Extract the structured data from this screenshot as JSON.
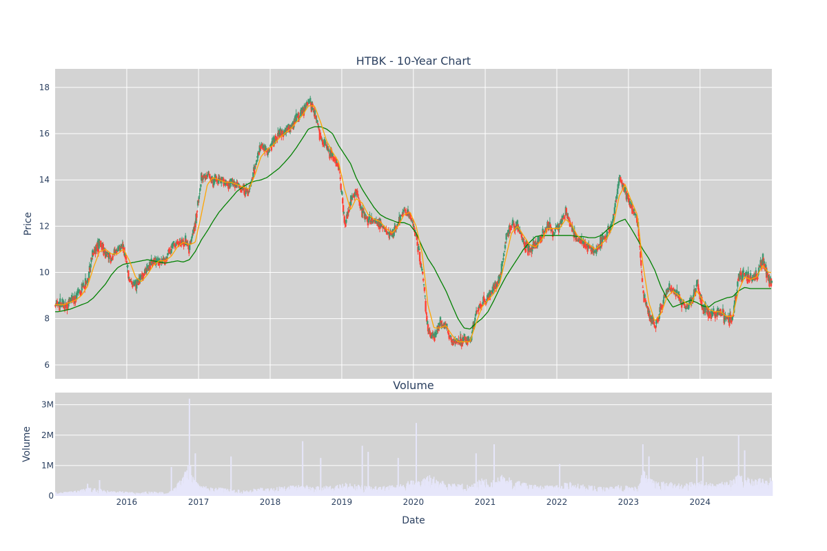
{
  "chart_data": [
    {
      "type": "candlestick",
      "title": "HTBK - 10-Year Chart",
      "ylabel": "Price",
      "ylim": [
        5.4,
        18.8
      ],
      "yticks": [
        6,
        8,
        10,
        12,
        14,
        16,
        18
      ],
      "grid": true,
      "legend": "none",
      "colors": {
        "up": "#3d9970",
        "down": "#ff4136",
        "ma_short": "#ffa500",
        "ma_long": "#008000",
        "background": "#d3d3d3"
      },
      "x_start": "2015-01",
      "x_end": "2024-12",
      "close_monthly": [
        8.6,
        8.5,
        8.8,
        8.9,
        9.3,
        9.7,
        11.0,
        11.3,
        10.8,
        10.6,
        11.0,
        11.2,
        9.6,
        9.4,
        9.8,
        10.2,
        10.6,
        10.4,
        10.6,
        11.0,
        11.4,
        11.3,
        11.1,
        12.2,
        14.1,
        14.2,
        14.0,
        14.0,
        13.8,
        13.9,
        13.8,
        13.6,
        13.5,
        14.7,
        15.5,
        15.2,
        15.6,
        16.0,
        16.0,
        16.3,
        16.6,
        17.0,
        17.4,
        16.8,
        15.8,
        15.4,
        15.0,
        14.6,
        12.1,
        13.1,
        13.6,
        12.6,
        12.3,
        12.2,
        12.1,
        11.8,
        11.6,
        12.2,
        12.8,
        12.4,
        11.6,
        9.9,
        7.4,
        7.2,
        7.8,
        7.7,
        7.0,
        7.0,
        7.1,
        7.0,
        8.3,
        8.7,
        8.9,
        9.3,
        9.7,
        11.4,
        12.1,
        12.0,
        11.3,
        11.0,
        11.2,
        11.6,
        12.1,
        11.7,
        12.0,
        12.6,
        12.0,
        11.4,
        11.3,
        11.1,
        10.9,
        11.4,
        11.7,
        12.4,
        14.0,
        13.5,
        12.8,
        12.3,
        9.1,
        8.2,
        7.7,
        8.5,
        9.3,
        9.3,
        8.9,
        8.5,
        8.6,
        9.6,
        8.4,
        8.3,
        8.2,
        8.3,
        8.0,
        8.1,
        9.9,
        9.8,
        9.7,
        9.8,
        10.6,
        9.6
      ],
      "ma_short_monthly": [
        8.6,
        8.6,
        8.7,
        8.8,
        9.0,
        9.4,
        10.2,
        10.9,
        11.0,
        10.8,
        10.8,
        11.0,
        10.5,
        9.8,
        9.6,
        9.9,
        10.3,
        10.5,
        10.5,
        10.7,
        11.1,
        11.3,
        11.2,
        11.3,
        12.5,
        13.8,
        14.1,
        14.0,
        13.9,
        13.9,
        13.8,
        13.7,
        13.6,
        14.2,
        15.0,
        15.3,
        15.5,
        15.8,
        16.0,
        16.2,
        16.5,
        16.8,
        17.2,
        17.2,
        16.5,
        15.7,
        15.2,
        14.8,
        13.6,
        12.7,
        13.2,
        13.0,
        12.5,
        12.3,
        12.2,
        11.9,
        11.7,
        12.0,
        12.5,
        12.6,
        12.0,
        10.8,
        8.6,
        7.6,
        7.6,
        7.7,
        7.3,
        7.0,
        7.0,
        7.0,
        7.8,
        8.5,
        8.8,
        9.1,
        9.5,
        10.6,
        11.7,
        12.0,
        11.6,
        11.2,
        11.1,
        11.4,
        11.9,
        11.9,
        11.9,
        12.3,
        12.1,
        11.6,
        11.4,
        11.2,
        11.0,
        11.2,
        11.5,
        12.0,
        13.3,
        13.8,
        13.1,
        12.5,
        10.4,
        8.7,
        7.9,
        8.2,
        8.9,
        9.2,
        9.0,
        8.7,
        8.6,
        9.2,
        8.8,
        8.4,
        8.3,
        8.3,
        8.1,
        8.1,
        9.2,
        9.8,
        9.7,
        9.8,
        10.3,
        10.0
      ],
      "ma_long_monthly": [
        8.3,
        8.35,
        8.4,
        8.5,
        8.6,
        8.7,
        8.9,
        9.2,
        9.5,
        9.9,
        10.2,
        10.35,
        10.4,
        10.45,
        10.5,
        10.55,
        10.5,
        10.45,
        10.4,
        10.45,
        10.5,
        10.45,
        10.55,
        10.9,
        11.4,
        11.8,
        12.2,
        12.6,
        12.9,
        13.2,
        13.5,
        13.7,
        13.85,
        13.95,
        14.0,
        14.1,
        14.3,
        14.5,
        14.75,
        15.05,
        15.4,
        15.8,
        16.2,
        16.3,
        16.3,
        16.2,
        16.0,
        15.5,
        15.1,
        14.7,
        14.1,
        13.6,
        13.2,
        12.8,
        12.5,
        12.35,
        12.25,
        12.15,
        12.15,
        12.05,
        11.7,
        11.1,
        10.6,
        10.2,
        9.7,
        9.2,
        8.6,
        8.0,
        7.6,
        7.55,
        7.8,
        8.0,
        8.3,
        8.8,
        9.3,
        9.8,
        10.2,
        10.6,
        11.0,
        11.3,
        11.55,
        11.6,
        11.6,
        11.6,
        11.6,
        11.6,
        11.6,
        11.55,
        11.55,
        11.5,
        11.5,
        11.6,
        11.85,
        12.05,
        12.2,
        12.3,
        11.9,
        11.45,
        11.0,
        10.6,
        10.1,
        9.4,
        8.9,
        8.5,
        8.6,
        8.7,
        8.8,
        8.7,
        8.55,
        8.5,
        8.7,
        8.8,
        8.9,
        8.95,
        9.2,
        9.35,
        9.3,
        9.3,
        9.3,
        9.3
      ]
    },
    {
      "type": "bar",
      "title": "Volume",
      "xlabel": "Date",
      "ylabel": "Volume",
      "ylim": [
        0,
        3400000
      ],
      "yticks": [
        0,
        1000000,
        2000000,
        3000000
      ],
      "ytick_labels": [
        "0",
        "1M",
        "2M",
        "3M"
      ],
      "grid": true,
      "colors": {
        "bar": "#e6e6fa",
        "background": "#d3d3d3"
      },
      "x_tick_labels": [
        "2016",
        "2017",
        "2018",
        "2019",
        "2020",
        "2021",
        "2022",
        "2023",
        "2024"
      ],
      "volume_monthly_typical": [
        100000,
        110000,
        130000,
        150000,
        180000,
        220000,
        230000,
        200000,
        160000,
        140000,
        130000,
        120000,
        110000,
        100000,
        100000,
        120000,
        130000,
        110000,
        100000,
        150000,
        350000,
        600000,
        900000,
        400000,
        300000,
        250000,
        200000,
        230000,
        200000,
        180000,
        170000,
        150000,
        160000,
        200000,
        230000,
        210000,
        220000,
        250000,
        270000,
        300000,
        320000,
        300000,
        280000,
        260000,
        250000,
        280000,
        260000,
        300000,
        350000,
        330000,
        300000,
        280000,
        270000,
        260000,
        250000,
        270000,
        290000,
        320000,
        380000,
        420000,
        380000,
        450000,
        600000,
        500000,
        420000,
        380000,
        350000,
        330000,
        320000,
        310000,
        400000,
        480000,
        450000,
        420000,
        600000,
        550000,
        480000,
        400000,
        350000,
        320000,
        300000,
        280000,
        300000,
        320000,
        330000,
        360000,
        380000,
        350000,
        300000,
        280000,
        260000,
        240000,
        230000,
        260000,
        300000,
        280000,
        250000,
        280000,
        700000,
        500000,
        450000,
        400000,
        380000,
        360000,
        340000,
        330000,
        380000,
        420000,
        400000,
        380000,
        350000,
        370000,
        400000,
        430000,
        600000,
        520000,
        480000,
        450000,
        500000,
        480000
      ],
      "volume_peaks": [
        {
          "date": "2015-06",
          "value": 400000
        },
        {
          "date": "2015-08",
          "value": 520000
        },
        {
          "date": "2016-08",
          "value": 950000
        },
        {
          "date": "2016-11",
          "value": 3200000
        },
        {
          "date": "2016-12",
          "value": 1400000
        },
        {
          "date": "2017-06",
          "value": 1300000
        },
        {
          "date": "2018-06",
          "value": 1800000
        },
        {
          "date": "2018-09",
          "value": 1250000
        },
        {
          "date": "2019-04",
          "value": 1650000
        },
        {
          "date": "2019-05",
          "value": 1450000
        },
        {
          "date": "2019-10",
          "value": 1250000
        },
        {
          "date": "2020-01",
          "value": 2400000
        },
        {
          "date": "2020-11",
          "value": 1400000
        },
        {
          "date": "2021-02",
          "value": 1700000
        },
        {
          "date": "2022-01",
          "value": 1050000
        },
        {
          "date": "2023-03",
          "value": 1700000
        },
        {
          "date": "2023-04",
          "value": 1300000
        },
        {
          "date": "2023-12",
          "value": 1250000
        },
        {
          "date": "2024-01",
          "value": 1300000
        },
        {
          "date": "2024-07",
          "value": 2000000
        },
        {
          "date": "2024-08",
          "value": 1500000
        }
      ]
    }
  ]
}
